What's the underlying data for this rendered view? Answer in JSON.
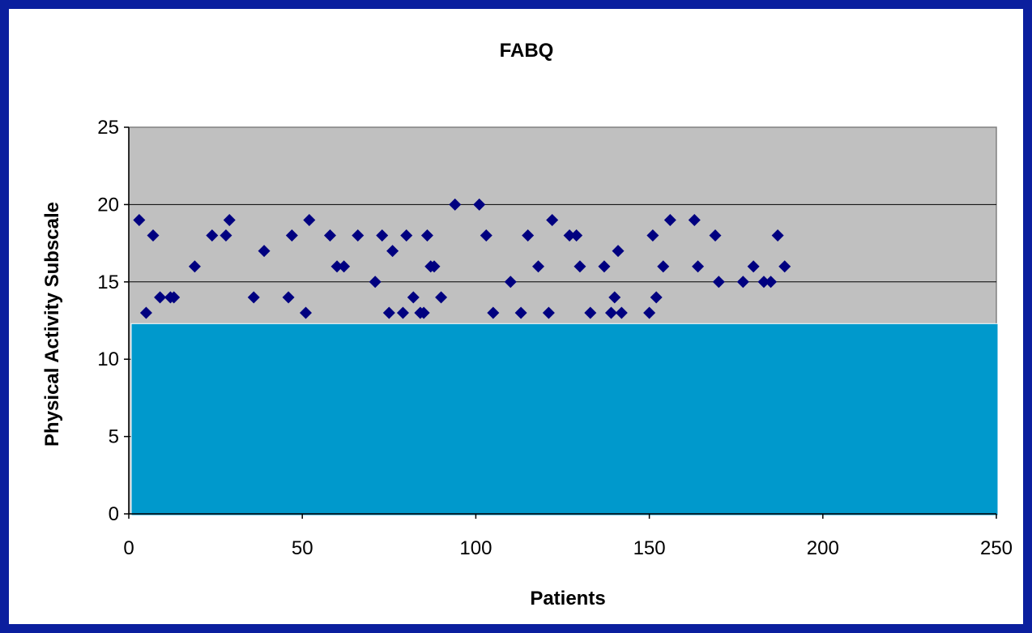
{
  "chart_data": {
    "type": "scatter",
    "title": "FABQ",
    "xlabel": "Patients",
    "ylabel": "Physical Activity Subscale",
    "xlim": [
      0,
      250
    ],
    "ylim": [
      0,
      25
    ],
    "x_ticks": [
      "0",
      "50",
      "100",
      "150",
      "200",
      "250"
    ],
    "y_ticks": [
      "0",
      "5",
      "10",
      "15",
      "20",
      "25"
    ],
    "grid": "horizontal major gridlines",
    "legend": "none",
    "colors": {
      "border": "#0b1f9e",
      "plot_area": "#c0c0c0",
      "marker": "#000080",
      "overlay": "#0099cc"
    },
    "overlay_box": {
      "from_y": 0,
      "to_y": 12.3,
      "from_x": 0,
      "to_x": 250
    },
    "points": [
      {
        "x": 3,
        "y": 19
      },
      {
        "x": 5,
        "y": 13
      },
      {
        "x": 7,
        "y": 18
      },
      {
        "x": 9,
        "y": 14
      },
      {
        "x": 12,
        "y": 14
      },
      {
        "x": 13,
        "y": 14
      },
      {
        "x": 19,
        "y": 16
      },
      {
        "x": 24,
        "y": 18
      },
      {
        "x": 28,
        "y": 18
      },
      {
        "x": 29,
        "y": 19
      },
      {
        "x": 36,
        "y": 14
      },
      {
        "x": 39,
        "y": 17
      },
      {
        "x": 46,
        "y": 14
      },
      {
        "x": 47,
        "y": 18
      },
      {
        "x": 51,
        "y": 13
      },
      {
        "x": 52,
        "y": 19
      },
      {
        "x": 58,
        "y": 18
      },
      {
        "x": 60,
        "y": 16
      },
      {
        "x": 62,
        "y": 16
      },
      {
        "x": 66,
        "y": 18
      },
      {
        "x": 71,
        "y": 15
      },
      {
        "x": 73,
        "y": 18
      },
      {
        "x": 75,
        "y": 13
      },
      {
        "x": 76,
        "y": 17
      },
      {
        "x": 79,
        "y": 13
      },
      {
        "x": 80,
        "y": 18
      },
      {
        "x": 82,
        "y": 14
      },
      {
        "x": 84,
        "y": 13
      },
      {
        "x": 85,
        "y": 13
      },
      {
        "x": 86,
        "y": 18
      },
      {
        "x": 87,
        "y": 16
      },
      {
        "x": 88,
        "y": 16
      },
      {
        "x": 90,
        "y": 14
      },
      {
        "x": 94,
        "y": 20
      },
      {
        "x": 101,
        "y": 20
      },
      {
        "x": 103,
        "y": 18
      },
      {
        "x": 105,
        "y": 13
      },
      {
        "x": 110,
        "y": 15
      },
      {
        "x": 113,
        "y": 13
      },
      {
        "x": 115,
        "y": 18
      },
      {
        "x": 118,
        "y": 16
      },
      {
        "x": 121,
        "y": 13
      },
      {
        "x": 122,
        "y": 19
      },
      {
        "x": 127,
        "y": 18
      },
      {
        "x": 129,
        "y": 18
      },
      {
        "x": 130,
        "y": 16
      },
      {
        "x": 133,
        "y": 13
      },
      {
        "x": 137,
        "y": 16
      },
      {
        "x": 139,
        "y": 13
      },
      {
        "x": 140,
        "y": 14
      },
      {
        "x": 141,
        "y": 17
      },
      {
        "x": 142,
        "y": 13
      },
      {
        "x": 150,
        "y": 13
      },
      {
        "x": 151,
        "y": 18
      },
      {
        "x": 152,
        "y": 14
      },
      {
        "x": 154,
        "y": 16
      },
      {
        "x": 156,
        "y": 19
      },
      {
        "x": 163,
        "y": 19
      },
      {
        "x": 164,
        "y": 16
      },
      {
        "x": 169,
        "y": 18
      },
      {
        "x": 170,
        "y": 15
      },
      {
        "x": 177,
        "y": 15
      },
      {
        "x": 180,
        "y": 16
      },
      {
        "x": 183,
        "y": 15
      },
      {
        "x": 185,
        "y": 15
      },
      {
        "x": 187,
        "y": 18
      },
      {
        "x": 189,
        "y": 16
      }
    ]
  }
}
